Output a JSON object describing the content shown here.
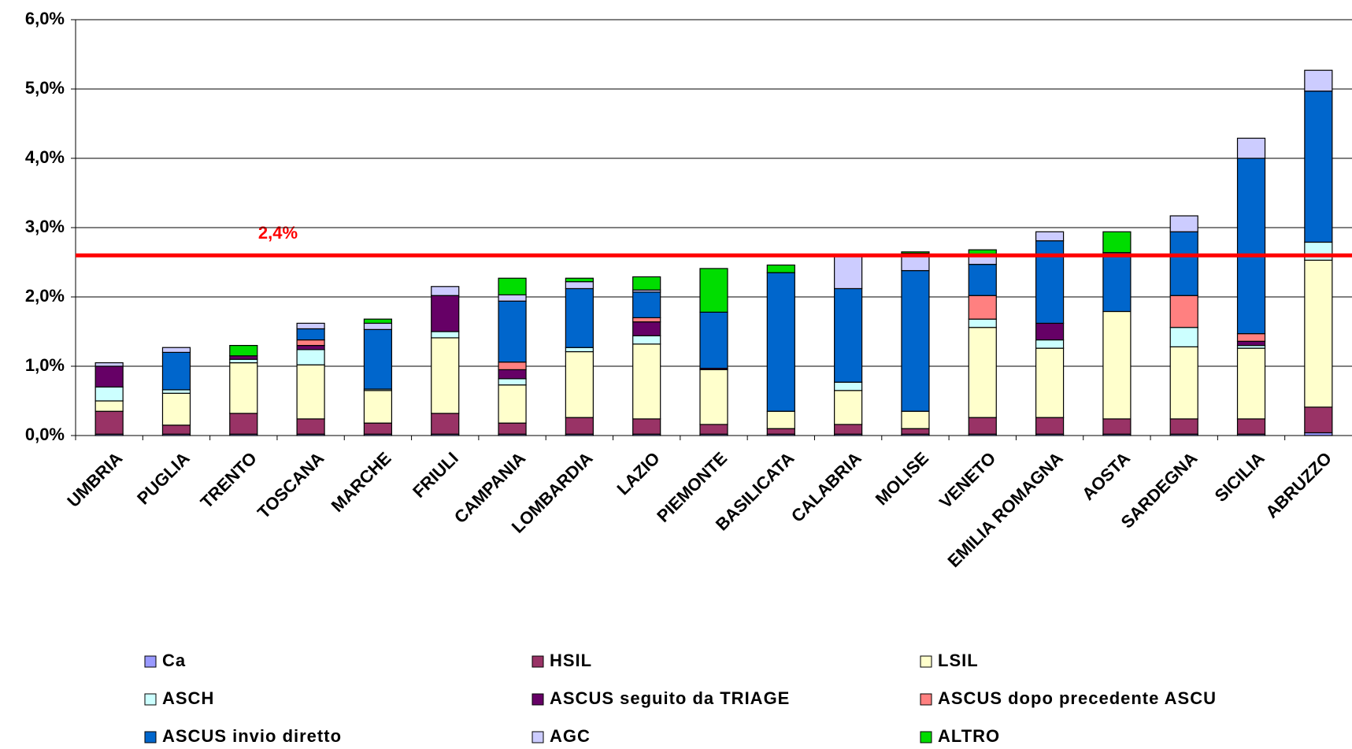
{
  "chart_data": {
    "type": "stacked_bar",
    "categories": [
      "UMBRIA",
      "PUGLIA",
      "TRENTO",
      "TOSCANA",
      "MARCHE",
      "FRIULI",
      "CAMPANIA",
      "LOMBARDIA",
      "LAZIO",
      "PIEMONTE",
      "BASILICATA",
      "CALABRIA",
      "MOLISE",
      "VENETO",
      "EMILIA ROMAGNA",
      "AOSTA",
      "SARDEGNA",
      "SICILIA",
      "ABRUZZO"
    ],
    "series": [
      {
        "name": "Ca",
        "color": "#9999ff",
        "values": [
          0.02,
          0.02,
          0.02,
          0.02,
          0.02,
          0.02,
          0.02,
          0.02,
          0.02,
          0.02,
          0.02,
          0.02,
          0.02,
          0.02,
          0.02,
          0.02,
          0.02,
          0.02,
          0.04
        ]
      },
      {
        "name": "HSIL",
        "color": "#993366",
        "values": [
          0.33,
          0.13,
          0.3,
          0.22,
          0.16,
          0.3,
          0.16,
          0.24,
          0.22,
          0.14,
          0.08,
          0.14,
          0.08,
          0.24,
          0.24,
          0.22,
          0.22,
          0.22,
          0.37
        ]
      },
      {
        "name": "LSIL",
        "color": "#ffffcc",
        "values": [
          0.15,
          0.46,
          0.73,
          0.78,
          0.47,
          1.09,
          0.55,
          0.95,
          1.08,
          0.79,
          0.25,
          0.49,
          0.25,
          1.3,
          1.0,
          1.55,
          1.04,
          1.02,
          2.12
        ]
      },
      {
        "name": "ASCH",
        "color": "#ccffff",
        "values": [
          0.2,
          0.05,
          0.05,
          0.22,
          0.02,
          0.09,
          0.09,
          0.06,
          0.12,
          0,
          0,
          0.12,
          0,
          0.12,
          0.12,
          0,
          0.28,
          0.04,
          0.26
        ]
      },
      {
        "name": "ASCUS seguito da TRIAGE",
        "color": "#660066",
        "values": [
          0.3,
          0,
          0.05,
          0.06,
          0,
          0.52,
          0.13,
          0,
          0.2,
          0.02,
          0,
          0,
          0,
          0,
          0.24,
          0,
          0,
          0.06,
          0
        ]
      },
      {
        "name": "ASCUS dopo precedente ASCU",
        "color": "#ff8080",
        "values": [
          0,
          0,
          0,
          0.08,
          0,
          0,
          0.11,
          0,
          0.06,
          0,
          0,
          0,
          0,
          0.34,
          0,
          0,
          0.46,
          0.11,
          0
        ]
      },
      {
        "name": "ASCUS invio diretto",
        "color": "#0066cc",
        "values": [
          0,
          0.54,
          0,
          0.16,
          0.86,
          0,
          0.88,
          0.85,
          0.37,
          0.81,
          2.0,
          1.35,
          2.03,
          0.45,
          1.19,
          0.85,
          0.92,
          2.53,
          2.18
        ]
      },
      {
        "name": "AGC",
        "color": "#ccccff",
        "values": [
          0.05,
          0.07,
          0,
          0.08,
          0.09,
          0.13,
          0.09,
          0.1,
          0.03,
          0,
          0,
          0.49,
          0.25,
          0.13,
          0.13,
          0,
          0.23,
          0.29,
          0.3
        ]
      },
      {
        "name": "ALTRO",
        "color": "#00dd00",
        "values": [
          0,
          0,
          0.15,
          0,
          0.06,
          0,
          0.24,
          0.05,
          0.19,
          0.63,
          0.11,
          0,
          0.02,
          0.08,
          0,
          0.3,
          0,
          0,
          0
        ]
      }
    ],
    "ylim": [
      0,
      6
    ],
    "yticks": [
      {
        "value": 0,
        "label": "0,0%"
      },
      {
        "value": 1,
        "label": "1,0%"
      },
      {
        "value": 2,
        "label": "2,0%"
      },
      {
        "value": 3,
        "label": "3,0%"
      },
      {
        "value": 4,
        "label": "4,0%"
      },
      {
        "value": 5,
        "label": "5,0%"
      },
      {
        "value": 6,
        "label": "6,0%"
      }
    ],
    "grid": true,
    "reference_line": {
      "value": 2.6,
      "color": "#ff0000"
    },
    "annotation": "2,4%"
  }
}
